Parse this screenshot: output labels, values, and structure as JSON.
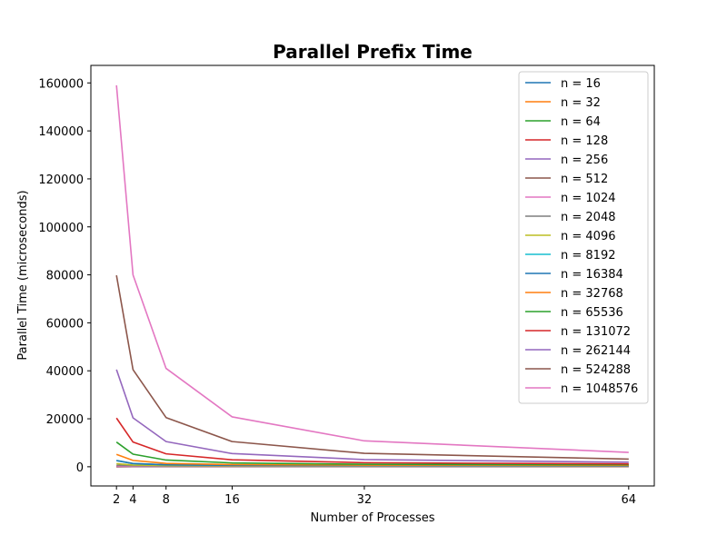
{
  "chart_data": {
    "type": "line",
    "title": "Parallel Prefix Time",
    "xlabel": "Number of Processes",
    "ylabel": "Parallel Time (microseconds)",
    "x": [
      2,
      4,
      8,
      16,
      32,
      64
    ],
    "xticks": [
      "2",
      "4",
      "8",
      "16",
      "32",
      "64"
    ],
    "yticks": [
      "0",
      "20000",
      "40000",
      "60000",
      "80000",
      "100000",
      "120000",
      "140000",
      "160000"
    ],
    "xlim": [
      -1.1,
      67.1
    ],
    "ylim": [
      -8000,
      167300
    ],
    "grid": false,
    "legend_position": "top-right",
    "series": [
      {
        "name": "n = 16",
        "color": "#1f77b4",
        "values": [
          20,
          40,
          60,
          80,
          100,
          120
        ]
      },
      {
        "name": "n = 32",
        "color": "#ff7f0e",
        "values": [
          30,
          50,
          70,
          90,
          110,
          130
        ]
      },
      {
        "name": "n = 64",
        "color": "#2ca02c",
        "values": [
          40,
          60,
          80,
          100,
          120,
          140
        ]
      },
      {
        "name": "n = 128",
        "color": "#d62728",
        "values": [
          60,
          80,
          100,
          120,
          140,
          160
        ]
      },
      {
        "name": "n = 256",
        "color": "#9467bd",
        "values": [
          100,
          110,
          130,
          150,
          170,
          190
        ]
      },
      {
        "name": "n = 512",
        "color": "#8c564b",
        "values": [
          180,
          170,
          180,
          200,
          220,
          240
        ]
      },
      {
        "name": "n = 1024",
        "color": "#e377c2",
        "values": [
          340,
          260,
          240,
          250,
          270,
          290
        ]
      },
      {
        "name": "n = 2048",
        "color": "#7f7f7f",
        "values": [
          660,
          420,
          340,
          320,
          330,
          350
        ]
      },
      {
        "name": "n = 4096",
        "color": "#bcbd22",
        "values": [
          1300,
          720,
          500,
          420,
          400,
          410
        ]
      },
      {
        "name": "n = 8192",
        "color": "#17becf",
        "values": [
          2580,
          1330,
          800,
          600,
          520,
          500
        ]
      },
      {
        "name": "n = 16384",
        "color": "#1f77b4",
        "values": [
          2600,
          1350,
          830,
          620,
          530,
          510
        ]
      },
      {
        "name": "n = 32768",
        "color": "#ff7f0e",
        "values": [
          5150,
          2650,
          1400,
          900,
          700,
          620
        ]
      },
      {
        "name": "n = 65536",
        "color": "#2ca02c",
        "values": [
          10300,
          5250,
          2800,
          1600,
          1050,
          850
        ]
      },
      {
        "name": "n = 131072",
        "color": "#d62728",
        "values": [
          20300,
          10300,
          5400,
          2900,
          1700,
          1200
        ]
      },
      {
        "name": "n = 262144",
        "color": "#9467bd",
        "values": [
          40500,
          20400,
          10500,
          5500,
          3000,
          1900
        ]
      },
      {
        "name": "n = 524288",
        "color": "#8c564b",
        "values": [
          79800,
          40500,
          20500,
          10500,
          5600,
          3200
        ]
      },
      {
        "name": "n = 1048576",
        "color": "#e377c2",
        "values": [
          159000,
          80000,
          41000,
          20800,
          10800,
          6000
        ]
      }
    ]
  }
}
